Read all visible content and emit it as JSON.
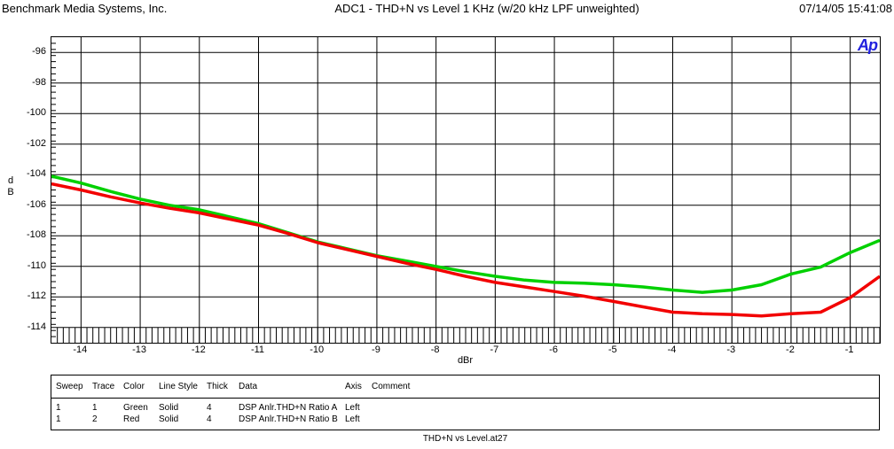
{
  "header": {
    "company": "Benchmark Media Systems, Inc.",
    "title": "ADC1 - THD+N vs Level 1 KHz (w/20 kHz LPF unweighted)",
    "datetime": "07/14/05 15:41:08"
  },
  "chart": {
    "logo_text": "Ap",
    "y_axis_label": "d\nB",
    "x_axis_label": "dBr"
  },
  "chart_data": {
    "type": "line",
    "title": "ADC1 - THD+N vs Level 1 KHz (w/20 kHz LPF unweighted)",
    "xlabel": "dBr",
    "ylabel": "dB",
    "xlim": [
      -14.5,
      -0.5
    ],
    "ylim": [
      -115,
      -95
    ],
    "x_major_ticks": [
      -14,
      -13,
      -12,
      -11,
      -10,
      -9,
      -8,
      -7,
      -6,
      -5,
      -4,
      -3,
      -2,
      -1
    ],
    "y_major_ticks": [
      -96,
      -98,
      -100,
      -102,
      -104,
      -106,
      -108,
      -110,
      -112,
      -114
    ],
    "x_minor_step": 0.1,
    "y_minor_step": 0.4,
    "grid": true,
    "legend_position": "table-below",
    "x": [
      -14.5,
      -14,
      -13.5,
      -13,
      -12.5,
      -12,
      -11.5,
      -11,
      -10.5,
      -10,
      -9.5,
      -9,
      -8.5,
      -8,
      -7.5,
      -7,
      -6.5,
      -6,
      -5.5,
      -5,
      -4.5,
      -4,
      -3.5,
      -3,
      -2.5,
      -2,
      -1.5,
      -1,
      -0.5
    ],
    "series": [
      {
        "name": "DSP Anlr.THD+N Ratio A",
        "color": "#00d000",
        "thickness": 4,
        "values": [
          -104.1,
          -104.55,
          -105.1,
          -105.6,
          -106.0,
          -106.3,
          -106.75,
          -107.2,
          -107.8,
          -108.4,
          -108.85,
          -109.3,
          -109.65,
          -110.0,
          -110.35,
          -110.65,
          -110.9,
          -111.05,
          -111.1,
          -111.2,
          -111.35,
          -111.55,
          -111.7,
          -111.55,
          -111.2,
          -110.5,
          -110.05,
          -109.1,
          -108.3
        ]
      },
      {
        "name": "DSP Anlr.THD+N Ratio B",
        "color": "#f20000",
        "thickness": 4,
        "values": [
          -104.6,
          -105.0,
          -105.45,
          -105.85,
          -106.2,
          -106.5,
          -106.9,
          -107.3,
          -107.85,
          -108.45,
          -108.9,
          -109.35,
          -109.8,
          -110.2,
          -110.65,
          -111.05,
          -111.35,
          -111.65,
          -111.95,
          -112.3,
          -112.65,
          -113.0,
          -113.1,
          -113.15,
          -113.25,
          -113.1,
          -113.0,
          -112.05,
          -110.65
        ]
      }
    ]
  },
  "legend_table": {
    "headers": [
      "Sweep",
      "Trace",
      "Color",
      "Line Style",
      "Thick",
      "Data",
      "Axis",
      "Comment"
    ],
    "rows": [
      [
        "1",
        "1",
        "Green",
        "Solid",
        "4",
        "DSP Anlr.THD+N Ratio A",
        "Left",
        ""
      ],
      [
        "1",
        "2",
        "Red",
        "Solid",
        "4",
        "DSP Anlr.THD+N Ratio B",
        "Left",
        ""
      ]
    ]
  },
  "footer": {
    "filename": "THD+N vs Level.at27"
  }
}
